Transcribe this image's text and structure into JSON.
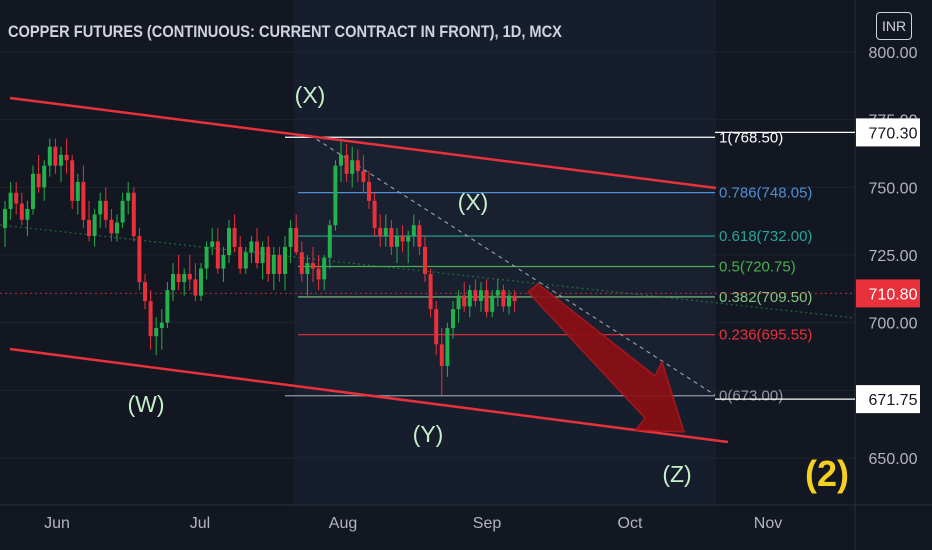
{
  "header": {
    "title": "COPPER FUTURES (CONTINUOUS: CURRENT CONTRACT IN FRONT), 1D, MCX",
    "currency": "INR"
  },
  "colors": {
    "background": "#131722",
    "up_candle": "#22b14c",
    "down_candle": "#e8313a",
    "channel": "#e8313a",
    "fib_blue": "#4f8fd6",
    "fib_green": "#26a69a",
    "fib_red": "#e8313a",
    "wave_label": "#c7f0c9",
    "cycle_label": "#f5d020",
    "arrow_fill": "#8b0f14",
    "current_price_box": "#e8313a"
  },
  "chart_data": {
    "type": "candlestick",
    "title": "COPPER FUTURES (CONTINUOUS: CURRENT CONTRACT IN FRONT), 1D, MCX",
    "ylim": [
      640,
      805
    ],
    "y_ticks": [
      650,
      675,
      700,
      725,
      750,
      775,
      800
    ],
    "y_tick_labels": [
      "650.00",
      "675.00",
      "700.00",
      "725.00",
      "750.00",
      "775.00",
      "800.00"
    ],
    "x_tick_labels": [
      "Jun",
      "Jul",
      "Aug",
      "Sep",
      "Oct",
      "Nov"
    ],
    "price_labels": [
      {
        "value": 770.3,
        "text": "770.30",
        "style": "white"
      },
      {
        "value": 710.8,
        "text": "710.80",
        "style": "red"
      },
      {
        "value": 671.75,
        "text": "671.75",
        "style": "white"
      }
    ],
    "fibonacci": [
      {
        "ratio": "1",
        "price": 768.5,
        "label": "1(768.50)",
        "color": "#ffffff"
      },
      {
        "ratio": "0.786",
        "price": 748.05,
        "label": "0.786(748.05)",
        "color": "#4f8fd6"
      },
      {
        "ratio": "0.618",
        "price": 732.0,
        "label": "0.618(732.00)",
        "color": "#26a69a"
      },
      {
        "ratio": "0.5",
        "price": 720.75,
        "label": "0.5(720.75)",
        "color": "#4caf50"
      },
      {
        "ratio": "0.382",
        "price": 709.5,
        "label": "0.382(709.50)",
        "color": "#81c784"
      },
      {
        "ratio": "0.236",
        "price": 695.55,
        "label": "0.236(695.55)",
        "color": "#e8313a"
      },
      {
        "ratio": "0",
        "price": 673.0,
        "label": "0(673.00)",
        "color": "#9598a1"
      }
    ],
    "wave_labels": [
      "(X)",
      "(X)",
      "(W)",
      "(Y)",
      "(Z)"
    ],
    "cycle_label": "(2)",
    "candles": [
      [
        735,
        745,
        728,
        742
      ],
      [
        742,
        752,
        738,
        748
      ],
      [
        748,
        752,
        740,
        744
      ],
      [
        744,
        748,
        736,
        738
      ],
      [
        738,
        745,
        732,
        742
      ],
      [
        742,
        758,
        740,
        755
      ],
      [
        755,
        762,
        748,
        750
      ],
      [
        750,
        760,
        745,
        758
      ],
      [
        758,
        768,
        754,
        765
      ],
      [
        765,
        768,
        755,
        758
      ],
      [
        758,
        765,
        752,
        762
      ],
      [
        762,
        768,
        755,
        760
      ],
      [
        760,
        762,
        742,
        745
      ],
      [
        745,
        755,
        740,
        752
      ],
      [
        752,
        758,
        735,
        738
      ],
      [
        738,
        745,
        730,
        732
      ],
      [
        732,
        742,
        728,
        740
      ],
      [
        740,
        748,
        735,
        745
      ],
      [
        745,
        750,
        735,
        738
      ],
      [
        738,
        742,
        730,
        733
      ],
      [
        733,
        740,
        730,
        737
      ],
      [
        737,
        748,
        735,
        745
      ],
      [
        745,
        752,
        740,
        748
      ],
      [
        748,
        750,
        730,
        732
      ],
      [
        732,
        735,
        712,
        715
      ],
      [
        715,
        718,
        705,
        708
      ],
      [
        708,
        712,
        690,
        695
      ],
      [
        695,
        702,
        688,
        698
      ],
      [
        698,
        705,
        690,
        700
      ],
      [
        700,
        715,
        698,
        712
      ],
      [
        712,
        722,
        708,
        718
      ],
      [
        718,
        725,
        712,
        715
      ],
      [
        715,
        720,
        710,
        718
      ],
      [
        718,
        725,
        712,
        716
      ],
      [
        716,
        722,
        708,
        710
      ],
      [
        710,
        722,
        708,
        720
      ],
      [
        720,
        730,
        716,
        728
      ],
      [
        728,
        735,
        725,
        730
      ],
      [
        730,
        735,
        718,
        720
      ],
      [
        720,
        728,
        715,
        725
      ],
      [
        725,
        738,
        722,
        735
      ],
      [
        735,
        740,
        726,
        728
      ],
      [
        728,
        732,
        718,
        720
      ],
      [
        720,
        728,
        718,
        726
      ],
      [
        726,
        732,
        722,
        730
      ],
      [
        730,
        735,
        720,
        722
      ],
      [
        722,
        730,
        716,
        728
      ],
      [
        728,
        732,
        715,
        718
      ],
      [
        718,
        728,
        712,
        725
      ],
      [
        725,
        728,
        715,
        718
      ],
      [
        718,
        732,
        712,
        728
      ],
      [
        728,
        738,
        722,
        735
      ],
      [
        735,
        740,
        725,
        726
      ],
      [
        726,
        730,
        715,
        718
      ],
      [
        718,
        725,
        710,
        722
      ],
      [
        722,
        728,
        715,
        720
      ],
      [
        720,
        725,
        712,
        716
      ],
      [
        716,
        725,
        712,
        724
      ],
      [
        724,
        738,
        720,
        736
      ],
      [
        736,
        760,
        734,
        758
      ],
      [
        758,
        768,
        752,
        762
      ],
      [
        762,
        766,
        752,
        755
      ],
      [
        755,
        765,
        750,
        760
      ],
      [
        760,
        764,
        752,
        756
      ],
      [
        756,
        762,
        748,
        752
      ],
      [
        752,
        756,
        742,
        745
      ],
      [
        745,
        748,
        732,
        735
      ],
      [
        735,
        740,
        728,
        732
      ],
      [
        732,
        740,
        728,
        735
      ],
      [
        735,
        738,
        725,
        728
      ],
      [
        728,
        735,
        722,
        732
      ],
      [
        732,
        736,
        726,
        730
      ],
      [
        730,
        734,
        722,
        732
      ],
      [
        732,
        740,
        728,
        736
      ],
      [
        736,
        738,
        725,
        728
      ],
      [
        728,
        732,
        715,
        718
      ],
      [
        718,
        720,
        702,
        705
      ],
      [
        705,
        708,
        688,
        692
      ],
      [
        692,
        698,
        673,
        684
      ],
      [
        684,
        700,
        680,
        698
      ],
      [
        698,
        708,
        694,
        705
      ],
      [
        705,
        712,
        700,
        710
      ],
      [
        710,
        715,
        704,
        706
      ],
      [
        706,
        714,
        702,
        712
      ],
      [
        712,
        716,
        706,
        708
      ],
      [
        708,
        715,
        704,
        712
      ],
      [
        712,
        716,
        702,
        704
      ],
      [
        704,
        712,
        702,
        710
      ],
      [
        710,
        716,
        706,
        712
      ],
      [
        712,
        714,
        704,
        706
      ],
      [
        706,
        712,
        703,
        710
      ],
      [
        710,
        712,
        704,
        708
      ]
    ],
    "annotations": [
      "1(768.50)",
      "0.786(748.05)",
      "0.618(732.00)",
      "0.5(720.75)",
      "0.382(709.50)",
      "0.236(695.55)",
      "0(673.00)"
    ]
  }
}
